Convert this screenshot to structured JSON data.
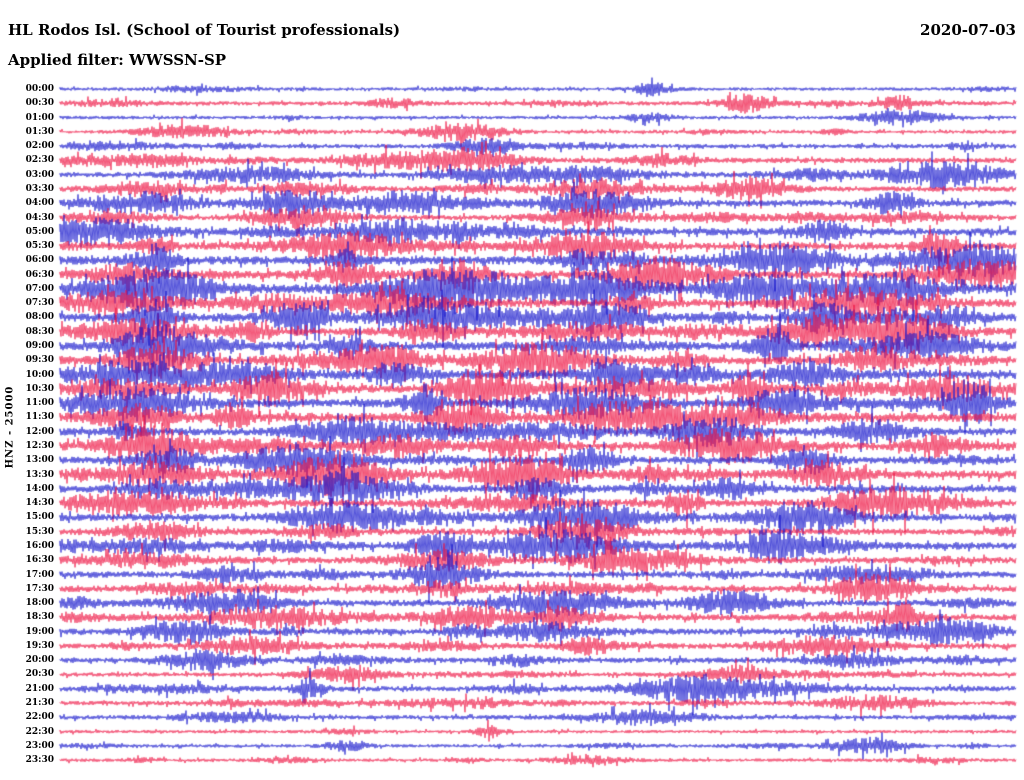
{
  "header": {
    "station_title": "HL Rodos Isl. (School of Tourist professionals)",
    "date": "2020-07-03",
    "filter_label": "Applied filter: WWSSN-SP"
  },
  "axis": {
    "channel_scale_label": "HNZ - 25000"
  },
  "colors": {
    "blue_trace": "#1414cc",
    "red_trace": "#ee1342",
    "background": "#ffffff",
    "text": "#000000"
  },
  "chart_data": {
    "type": "line",
    "title": "HL Rodos Isl. (School of Tourist professionals)",
    "date": "2020-07-03",
    "filter": "WWSSN-SP",
    "channel": "HNZ",
    "scale": "25000",
    "row_interval_minutes": 30,
    "description": "24-hour helicorder seismogram; one horizontal trace per 30-minute segment, alternating blue and red; activity is relative amplitude (1 quiet - 8 very active); bursts are fractional positions of visible event wave packets along each trace",
    "rows": [
      {
        "time": "00:00",
        "color": "blue",
        "activity": 2,
        "bursts": [
          0.62
        ]
      },
      {
        "time": "00:30",
        "color": "red",
        "activity": 3,
        "bursts": [
          0.35,
          0.72,
          0.88
        ]
      },
      {
        "time": "01:00",
        "color": "blue",
        "activity": 2,
        "bursts": [
          0.88
        ]
      },
      {
        "time": "01:30",
        "color": "red",
        "activity": 2,
        "bursts": [
          0.13,
          0.42
        ]
      },
      {
        "time": "02:00",
        "color": "blue",
        "activity": 3,
        "bursts": [
          0.05,
          0.44
        ]
      },
      {
        "time": "02:30",
        "color": "red",
        "activity": 4,
        "bursts": [
          0.34,
          0.42,
          0.63
        ]
      },
      {
        "time": "03:00",
        "color": "blue",
        "activity": 4,
        "bursts": [
          0.2,
          0.45,
          0.55,
          0.93
        ]
      },
      {
        "time": "03:30",
        "color": "red",
        "activity": 4,
        "bursts": [
          0.09,
          0.25,
          0.55,
          0.72
        ]
      },
      {
        "time": "04:00",
        "color": "blue",
        "activity": 5,
        "bursts": [
          0.09,
          0.24,
          0.36,
          0.56,
          0.87
        ]
      },
      {
        "time": "04:30",
        "color": "red",
        "activity": 4,
        "bursts": [
          0.05,
          0.25,
          0.55,
          0.78,
          0.88
        ]
      },
      {
        "time": "05:00",
        "color": "blue",
        "activity": 6,
        "bursts": [
          0.04,
          0.35,
          0.8
        ]
      },
      {
        "time": "05:30",
        "color": "red",
        "activity": 6,
        "bursts": [
          0.1,
          0.3,
          0.55,
          0.92
        ]
      },
      {
        "time": "06:00",
        "color": "blue",
        "activity": 7,
        "bursts": [
          0.1,
          0.3,
          0.55,
          0.75,
          0.96
        ]
      },
      {
        "time": "06:30",
        "color": "red",
        "activity": 7,
        "bursts": [
          0.07,
          0.3,
          0.42,
          0.62,
          0.96
        ]
      },
      {
        "time": "07:00",
        "color": "blue",
        "activity": 8,
        "bursts": [
          0.07,
          0.12,
          0.4,
          0.55,
          0.73,
          0.85
        ]
      },
      {
        "time": "07:30",
        "color": "red",
        "activity": 7,
        "bursts": [
          0.06,
          0.22,
          0.35,
          0.6,
          0.83
        ]
      },
      {
        "time": "08:00",
        "color": "blue",
        "activity": 7,
        "bursts": [
          0.1,
          0.25,
          0.4,
          0.57,
          0.8,
          0.92
        ]
      },
      {
        "time": "08:30",
        "color": "red",
        "activity": 7,
        "bursts": [
          0.08,
          0.2,
          0.38,
          0.55,
          0.78,
          0.88
        ]
      },
      {
        "time": "09:00",
        "color": "blue",
        "activity": 7,
        "bursts": [
          0.1,
          0.13,
          0.3,
          0.55,
          0.75,
          0.9
        ]
      },
      {
        "time": "09:30",
        "color": "red",
        "activity": 7,
        "bursts": [
          0.1,
          0.33,
          0.5,
          0.65,
          0.85
        ]
      },
      {
        "time": "10:00",
        "color": "blue",
        "activity": 8,
        "bursts": [
          0.07,
          0.19,
          0.35,
          0.58,
          0.65,
          0.78
        ]
      },
      {
        "time": "10:30",
        "color": "red",
        "activity": 7,
        "bursts": [
          0.06,
          0.22,
          0.45,
          0.6,
          0.72,
          0.93
        ]
      },
      {
        "time": "11:00",
        "color": "blue",
        "activity": 7,
        "bursts": [
          0.08,
          0.38,
          0.55,
          0.75,
          0.95
        ]
      },
      {
        "time": "11:30",
        "color": "red",
        "activity": 8,
        "bursts": [
          0.07,
          0.18,
          0.42,
          0.6,
          0.72
        ]
      },
      {
        "time": "12:00",
        "color": "blue",
        "activity": 6,
        "bursts": [
          0.07,
          0.3,
          0.4,
          0.68,
          0.85
        ]
      },
      {
        "time": "12:30",
        "color": "red",
        "activity": 7,
        "bursts": [
          0.1,
          0.35,
          0.48,
          0.7,
          0.92
        ]
      },
      {
        "time": "13:00",
        "color": "blue",
        "activity": 6,
        "bursts": [
          0.12,
          0.25,
          0.55,
          0.78
        ]
      },
      {
        "time": "13:30",
        "color": "red",
        "activity": 7,
        "bursts": [
          0.1,
          0.28,
          0.48,
          0.62,
          0.8
        ]
      },
      {
        "time": "14:00",
        "color": "blue",
        "activity": 6,
        "bursts": [
          0.1,
          0.2,
          0.3,
          0.5,
          0.7
        ]
      },
      {
        "time": "14:30",
        "color": "red",
        "activity": 6,
        "bursts": [
          0.1,
          0.47,
          0.65,
          0.85
        ]
      },
      {
        "time": "15:00",
        "color": "blue",
        "activity": 6,
        "bursts": [
          0.3,
          0.55,
          0.78
        ]
      },
      {
        "time": "15:30",
        "color": "red",
        "activity": 5,
        "bursts": [
          0.1,
          0.28,
          0.55
        ]
      },
      {
        "time": "16:00",
        "color": "blue",
        "activity": 6,
        "bursts": [
          0.1,
          0.4,
          0.52,
          0.75
        ]
      },
      {
        "time": "16:30",
        "color": "red",
        "activity": 5,
        "bursts": [
          0.09,
          0.4,
          0.6
        ]
      },
      {
        "time": "17:00",
        "color": "blue",
        "activity": 5,
        "bursts": [
          0.18,
          0.4,
          0.83
        ]
      },
      {
        "time": "17:30",
        "color": "red",
        "activity": 5,
        "bursts": [
          0.4,
          0.53,
          0.85
        ]
      },
      {
        "time": "18:00",
        "color": "blue",
        "activity": 5,
        "bursts": [
          0.16,
          0.52,
          0.7
        ]
      },
      {
        "time": "18:30",
        "color": "red",
        "activity": 5,
        "bursts": [
          0.22,
          0.43,
          0.52,
          0.88
        ]
      },
      {
        "time": "19:00",
        "color": "blue",
        "activity": 5,
        "bursts": [
          0.13,
          0.42,
          0.5,
          0.92
        ]
      },
      {
        "time": "19:30",
        "color": "red",
        "activity": 4,
        "bursts": [
          0.2,
          0.55,
          0.8
        ]
      },
      {
        "time": "20:00",
        "color": "blue",
        "activity": 4,
        "bursts": [
          0.15,
          0.48,
          0.83
        ]
      },
      {
        "time": "20:30",
        "color": "red",
        "activity": 3,
        "bursts": [
          0.3,
          0.72
        ]
      },
      {
        "time": "21:00",
        "color": "blue",
        "activity": 4,
        "bursts": [
          0.26,
          0.66
        ]
      },
      {
        "time": "21:30",
        "color": "red",
        "activity": 3,
        "bursts": [
          0.4,
          0.85
        ]
      },
      {
        "time": "22:00",
        "color": "blue",
        "activity": 3,
        "bursts": [
          0.18,
          0.6
        ]
      },
      {
        "time": "22:30",
        "color": "red",
        "activity": 2,
        "bursts": [
          0.45
        ]
      },
      {
        "time": "23:00",
        "color": "blue",
        "activity": 2,
        "bursts": [
          0.3,
          0.85
        ]
      },
      {
        "time": "23:30",
        "color": "red",
        "activity": 2,
        "bursts": [
          0.55
        ]
      }
    ]
  }
}
